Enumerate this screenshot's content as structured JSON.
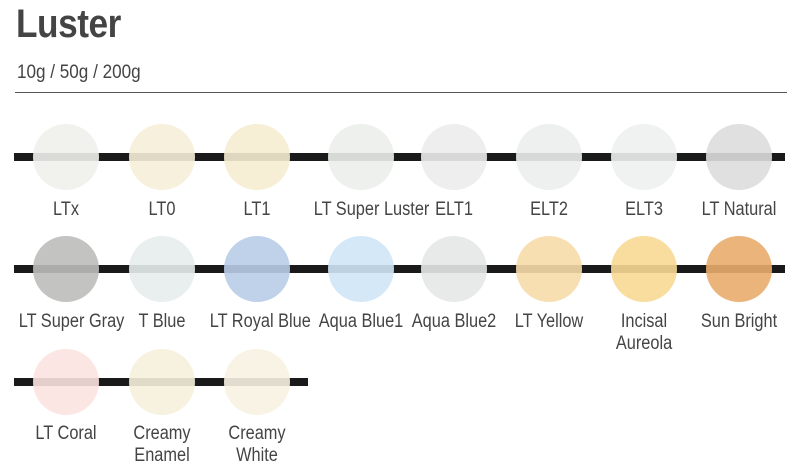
{
  "header": {
    "title": "Luster",
    "subtitle": "10g / 50g / 200g"
  },
  "rows": [
    {
      "items": [
        {
          "label": "LTx",
          "color": "#efefec"
        },
        {
          "label": "LT0",
          "color": "#f5eed8"
        },
        {
          "label": "LT1",
          "color": "#f6ecd2"
        },
        {
          "label": "LT Super Luster",
          "color": "#ebeeea"
        },
        {
          "label": "ELT1",
          "color": "#ebeceb"
        },
        {
          "label": "ELT2",
          "color": "#eceded"
        },
        {
          "label": "ELT3",
          "color": "#eeefef"
        },
        {
          "label": "LT Natural",
          "color": "#dddddd"
        }
      ]
    },
    {
      "items": [
        {
          "label": "LT Super Gray",
          "color": "#bdbdbb"
        },
        {
          "label": "T Blue",
          "color": "#e7eced"
        },
        {
          "label": "LT Royal Blue",
          "color": "#b9cde8"
        },
        {
          "label": "Aqua Blue1",
          "color": "#d0e5f7"
        },
        {
          "label": "Aqua Blue2",
          "color": "#e6e8e8"
        },
        {
          "label": "LT Yellow",
          "color": "#f6dcaa"
        },
        {
          "label": "Incisal Aureola",
          "color": "#f8d995"
        },
        {
          "label": "Sun Bright",
          "color": "#e9ac6c"
        }
      ]
    },
    {
      "items": [
        {
          "label": "LT Coral",
          "color": "#fbe3e1"
        },
        {
          "label": "Creamy Enamel",
          "color": "#f6f0dc"
        },
        {
          "label": "Creamy White",
          "color": "#f7f2e1"
        }
      ]
    }
  ]
}
